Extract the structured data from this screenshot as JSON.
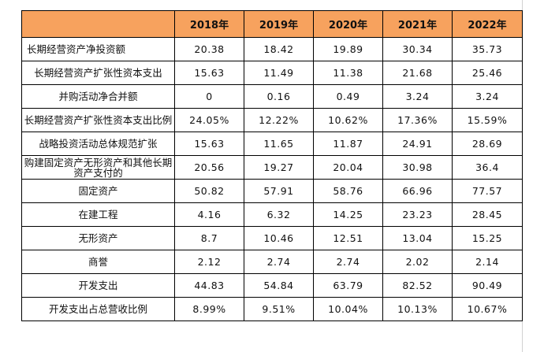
{
  "table": {
    "header_blank": "",
    "years": [
      "2018年",
      "2019年",
      "2020年",
      "2021年",
      "2022年"
    ],
    "rows": [
      {
        "label": "长期经营资产净投资额",
        "values": [
          "20.38",
          "18.42",
          "19.89",
          "30.34",
          "35.73"
        ]
      },
      {
        "label": "长期经营资产扩张性资本支出",
        "values": [
          "15.63",
          "11.49",
          "11.38",
          "21.68",
          "25.46"
        ]
      },
      {
        "label": "并购活动净合并额",
        "values": [
          "0",
          "0.16",
          "0.49",
          "3.24",
          "3.24"
        ]
      },
      {
        "label": "长期经营资产扩张性资本支出比例",
        "values": [
          "24.05%",
          "12.22%",
          "10.62%",
          "17.36%",
          "15.59%"
        ]
      },
      {
        "label": "战略投资活动总体规范扩张",
        "values": [
          "15.63",
          "11.65",
          "11.87",
          "24.91",
          "28.69"
        ]
      },
      {
        "label": "购建固定资产无形资产和其他长期资产支付的",
        "values": [
          "20.56",
          "19.27",
          "20.04",
          "30.98",
          "36.4"
        ]
      },
      {
        "label": "固定资产",
        "values": [
          "50.82",
          "57.91",
          "58.76",
          "66.96",
          "77.57"
        ]
      },
      {
        "label": "在建工程",
        "values": [
          "4.16",
          "6.32",
          "14.25",
          "23.23",
          "28.45"
        ]
      },
      {
        "label": "无形资产",
        "values": [
          "8.7",
          "10.46",
          "12.51",
          "13.04",
          "15.25"
        ]
      },
      {
        "label": "商誉",
        "values": [
          "2.12",
          "2.74",
          "2.74",
          "2.02",
          "2.14"
        ]
      },
      {
        "label": "开发支出",
        "values": [
          "44.83",
          "54.84",
          "63.79",
          "82.52",
          "90.49"
        ]
      },
      {
        "label": "开发支出占总营收比例",
        "values": [
          "8.99%",
          "9.51%",
          "10.04%",
          "10.13%",
          "10.67%"
        ]
      }
    ]
  }
}
